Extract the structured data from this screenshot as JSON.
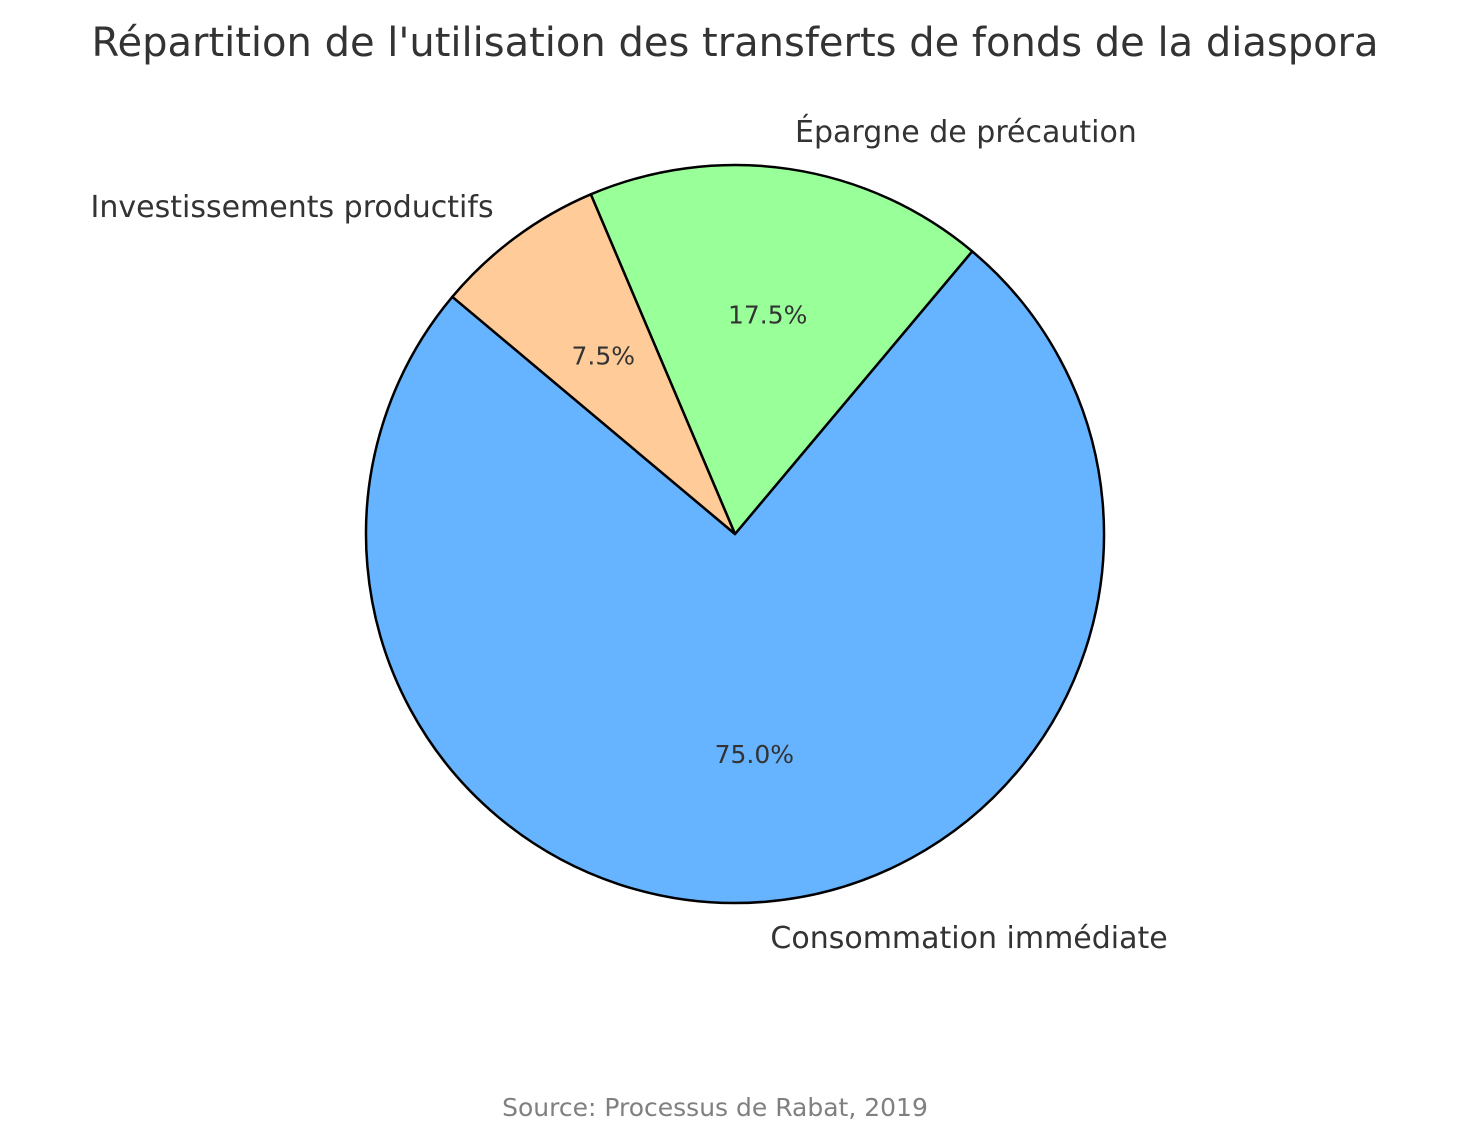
{
  "chart_data": {
    "type": "pie",
    "title": "Répartition de l'utilisation des transferts de fonds de la diaspora",
    "categories": [
      "Consommation immédiate",
      "Épargne de précaution",
      "Investissements productifs"
    ],
    "values": [
      75.0,
      17.5,
      7.5
    ],
    "percent_labels": [
      "75.0%",
      "17.5%",
      "7.5%"
    ],
    "colors": [
      "#66b3ff",
      "#99ff99",
      "#ffcc99"
    ],
    "start_angle_deg": 140,
    "direction": "counterclockwise",
    "legend": "none",
    "source": "Source: Processus de Rabat, 2019"
  }
}
